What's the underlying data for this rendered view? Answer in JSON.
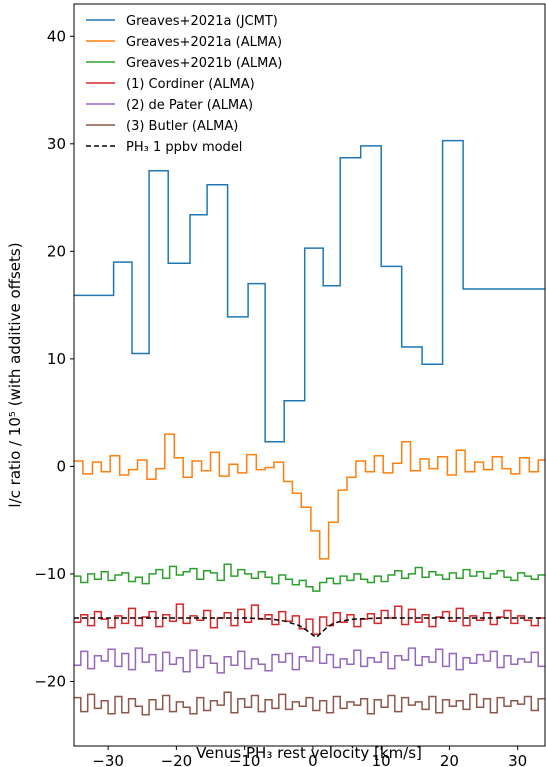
{
  "chart_data": {
    "type": "line",
    "xlabel": "Venus PH₃ rest velocity [km/s]",
    "ylabel": "l/c ratio / 10⁵ (with additive offsets)",
    "xlim": [
      -35,
      34
    ],
    "ylim": [
      -26,
      43
    ],
    "x_ticks": [
      -30,
      -20,
      -10,
      0,
      10,
      20,
      30
    ],
    "x_tick_labels": [
      "−30",
      "−20",
      "−10",
      "0",
      "10",
      "20",
      "30"
    ],
    "y_ticks": [
      -20,
      -10,
      0,
      10,
      20,
      30,
      40
    ],
    "y_tick_labels": [
      "−20",
      "−10",
      "0",
      "10",
      "20",
      "30",
      "40"
    ],
    "grid": false,
    "legend_position": "top-left",
    "series": [
      {
        "name": "Greaves+2021a (JCMT)",
        "color": "#1f77b4",
        "step": true,
        "dash": false,
        "x": [
          -35.5,
          -32.0,
          -29.2,
          -26.5,
          -24.0,
          -21.2,
          -18.0,
          -15.5,
          -12.5,
          -9.5,
          -7.0,
          -4.2,
          -1.2,
          1.5,
          4.0,
          7.0,
          10.0,
          13.0,
          16.0,
          19.0,
          22.0,
          25.0,
          28.0,
          31.0,
          34.0
        ],
        "y": [
          15.9,
          15.9,
          19.0,
          10.5,
          27.5,
          18.9,
          23.4,
          26.2,
          13.9,
          17.0,
          2.3,
          6.1,
          20.3,
          16.8,
          28.7,
          29.8,
          18.6,
          11.1,
          9.5,
          30.3,
          16.5,
          16.5,
          16.5,
          16.5,
          16.5
        ]
      },
      {
        "name": "Greaves+2021a (ALMA)",
        "color": "#ff7f0e",
        "step": true,
        "dash": false,
        "x": [
          -35.0,
          -33.7,
          -32.3,
          -31.0,
          -29.7,
          -28.3,
          -27.0,
          -25.7,
          -24.3,
          -23.0,
          -21.7,
          -20.3,
          -19.0,
          -17.7,
          -16.3,
          -15.0,
          -13.7,
          -12.3,
          -11.0,
          -9.7,
          -8.3,
          -7.0,
          -5.7,
          -4.3,
          -3.0,
          -1.7,
          -0.3,
          1.0,
          2.3,
          3.7,
          5.0,
          6.3,
          7.7,
          9.0,
          10.3,
          11.7,
          13.0,
          14.3,
          15.7,
          17.0,
          18.3,
          19.7,
          21.0,
          22.3,
          23.7,
          25.0,
          26.3,
          27.7,
          29.0,
          30.3,
          31.7,
          33.0,
          34.0
        ],
        "y": [
          0.5,
          -0.7,
          0.4,
          -0.5,
          1.0,
          -0.8,
          -0.3,
          0.6,
          -1.2,
          -0.2,
          3.0,
          0.8,
          -1.0,
          0.5,
          -0.4,
          1.3,
          -0.9,
          0.2,
          -0.6,
          1.1,
          -0.3,
          -0.1,
          0.4,
          -1.4,
          -2.5,
          -3.8,
          -6.0,
          -8.6,
          -5.2,
          -2.2,
          -1.0,
          0.5,
          -0.5,
          1.0,
          -0.6,
          0.3,
          2.3,
          -0.4,
          0.7,
          -0.2,
          0.9,
          -0.8,
          1.5,
          -0.5,
          0.4,
          -0.3,
          0.9,
          -0.2,
          -0.7,
          0.8,
          -0.5,
          0.6,
          0.6
        ]
      },
      {
        "name": "Greaves+2021b (ALMA)",
        "color": "#2ca02c",
        "step": true,
        "dash": false,
        "x": [
          -35.0,
          -34.0,
          -33.0,
          -32.0,
          -31.0,
          -30.0,
          -29.0,
          -28.0,
          -27.0,
          -26.0,
          -25.0,
          -24.0,
          -23.0,
          -22.0,
          -21.0,
          -20.0,
          -19.0,
          -18.0,
          -17.0,
          -16.0,
          -15.0,
          -14.0,
          -13.0,
          -12.0,
          -11.0,
          -10.0,
          -9.0,
          -8.0,
          -7.0,
          -6.0,
          -5.0,
          -4.0,
          -3.0,
          -2.0,
          -1.0,
          0.0,
          1.0,
          2.0,
          3.0,
          4.0,
          5.0,
          6.0,
          7.0,
          8.0,
          9.0,
          10.0,
          11.0,
          12.0,
          13.0,
          14.0,
          15.0,
          16.0,
          17.0,
          18.0,
          19.0,
          20.0,
          21.0,
          22.0,
          23.0,
          24.0,
          25.0,
          26.0,
          27.0,
          28.0,
          29.0,
          30.0,
          31.0,
          32.0,
          33.0,
          34.0
        ],
        "y": [
          -10.2,
          -10.8,
          -10.0,
          -10.5,
          -9.8,
          -10.6,
          -10.1,
          -9.9,
          -10.7,
          -10.3,
          -10.9,
          -10.0,
          -9.6,
          -10.4,
          -9.3,
          -10.1,
          -9.8,
          -9.5,
          -10.5,
          -9.7,
          -9.9,
          -10.6,
          -9.1,
          -10.2,
          -9.6,
          -10.0,
          -10.4,
          -9.8,
          -10.3,
          -10.9,
          -10.1,
          -10.5,
          -11.0,
          -10.6,
          -11.2,
          -11.6,
          -10.8,
          -10.4,
          -10.9,
          -10.2,
          -10.6,
          -10.0,
          -10.5,
          -10.8,
          -10.2,
          -10.7,
          -10.1,
          -9.7,
          -10.4,
          -10.0,
          -9.4,
          -10.3,
          -9.8,
          -10.1,
          -10.5,
          -9.9,
          -10.4,
          -9.6,
          -10.2,
          -9.8,
          -10.4,
          -10.0,
          -9.7,
          -10.3,
          -10.6,
          -9.9,
          -10.2,
          -10.5,
          -10.1,
          -10.1
        ]
      },
      {
        "name": "(1) Cordiner (ALMA)",
        "color": "#d62728",
        "step": true,
        "dash": false,
        "x": [
          -35.0,
          -34.0,
          -33.0,
          -32.0,
          -31.0,
          -30.0,
          -29.0,
          -28.0,
          -27.0,
          -26.0,
          -25.0,
          -24.0,
          -23.0,
          -22.0,
          -21.0,
          -20.0,
          -19.0,
          -18.0,
          -17.0,
          -16.0,
          -15.0,
          -14.0,
          -13.0,
          -12.0,
          -11.0,
          -10.0,
          -9.0,
          -8.0,
          -7.0,
          -6.0,
          -5.0,
          -4.0,
          -3.0,
          -2.0,
          -1.0,
          0.0,
          1.0,
          2.0,
          3.0,
          4.0,
          5.0,
          6.0,
          7.0,
          8.0,
          9.0,
          10.0,
          11.0,
          12.0,
          13.0,
          14.0,
          15.0,
          16.0,
          17.0,
          18.0,
          19.0,
          20.0,
          21.0,
          22.0,
          23.0,
          24.0,
          25.0,
          26.0,
          27.0,
          28.0,
          29.0,
          30.0,
          31.0,
          32.0,
          33.0,
          34.0
        ],
        "y": [
          -14.5,
          -13.8,
          -14.8,
          -13.5,
          -14.2,
          -15.0,
          -13.9,
          -14.6,
          -13.2,
          -14.8,
          -14.0,
          -13.5,
          -14.9,
          -13.8,
          -14.4,
          -12.8,
          -14.6,
          -13.9,
          -14.3,
          -13.4,
          -15.0,
          -14.1,
          -13.6,
          -14.8,
          -13.3,
          -14.5,
          -12.9,
          -14.2,
          -13.8,
          -14.7,
          -13.5,
          -14.4,
          -13.9,
          -15.1,
          -14.2,
          -15.6,
          -14.0,
          -14.8,
          -13.6,
          -14.5,
          -13.8,
          -14.9,
          -14.2,
          -13.7,
          -14.6,
          -13.4,
          -14.1,
          -13.0,
          -14.7,
          -13.3,
          -14.5,
          -13.8,
          -14.9,
          -14.0,
          -13.5,
          -14.4,
          -13.2,
          -14.8,
          -13.9,
          -14.3,
          -13.6,
          -14.7,
          -14.0,
          -13.4,
          -14.6,
          -13.9,
          -14.3,
          -14.8,
          -14.1,
          -14.1
        ]
      },
      {
        "name": "(2) de Pater (ALMA)",
        "color": "#9467bd",
        "step": true,
        "dash": false,
        "x": [
          -35.0,
          -34.0,
          -33.0,
          -32.0,
          -31.0,
          -30.0,
          -29.0,
          -28.0,
          -27.0,
          -26.0,
          -25.0,
          -24.0,
          -23.0,
          -22.0,
          -21.0,
          -20.0,
          -19.0,
          -18.0,
          -17.0,
          -16.0,
          -15.0,
          -14.0,
          -13.0,
          -12.0,
          -11.0,
          -10.0,
          -9.0,
          -8.0,
          -7.0,
          -6.0,
          -5.0,
          -4.0,
          -3.0,
          -2.0,
          -1.0,
          0.0,
          1.0,
          2.0,
          3.0,
          4.0,
          5.0,
          6.0,
          7.0,
          8.0,
          9.0,
          10.0,
          11.0,
          12.0,
          13.0,
          14.0,
          15.0,
          16.0,
          17.0,
          18.0,
          19.0,
          20.0,
          21.0,
          22.0,
          23.0,
          24.0,
          25.0,
          26.0,
          27.0,
          28.0,
          29.0,
          30.0,
          31.0,
          32.0,
          33.0,
          34.0
        ],
        "y": [
          -18.5,
          -17.2,
          -18.8,
          -17.6,
          -18.1,
          -17.0,
          -18.6,
          -17.4,
          -18.9,
          -16.9,
          -18.2,
          -17.5,
          -19.0,
          -17.3,
          -18.4,
          -17.8,
          -19.1,
          -17.1,
          -18.7,
          -17.6,
          -18.3,
          -19.2,
          -17.7,
          -18.5,
          -17.2,
          -18.8,
          -17.9,
          -18.4,
          -19.0,
          -17.5,
          -18.2,
          -17.4,
          -18.9,
          -17.7,
          -18.1,
          -16.8,
          -18.3,
          -17.5,
          -18.7,
          -17.9,
          -18.4,
          -17.1,
          -18.6,
          -17.8,
          -18.2,
          -17.3,
          -18.8,
          -17.6,
          -18.0,
          -16.9,
          -18.5,
          -17.7,
          -18.2,
          -17.0,
          -18.6,
          -17.4,
          -18.9,
          -17.8,
          -18.3,
          -17.5,
          -18.1,
          -17.2,
          -18.7,
          -17.6,
          -18.4,
          -17.9,
          -18.2,
          -17.3,
          -18.6,
          -18.6
        ]
      },
      {
        "name": "(3) Butler (ALMA)",
        "color": "#8c564b",
        "step": true,
        "dash": false,
        "x": [
          -35.0,
          -34.0,
          -33.0,
          -32.0,
          -31.0,
          -30.0,
          -29.0,
          -28.0,
          -27.0,
          -26.0,
          -25.0,
          -24.0,
          -23.0,
          -22.0,
          -21.0,
          -20.0,
          -19.0,
          -18.0,
          -17.0,
          -16.0,
          -15.0,
          -14.0,
          -13.0,
          -12.0,
          -11.0,
          -10.0,
          -9.0,
          -8.0,
          -7.0,
          -6.0,
          -5.0,
          -4.0,
          -3.0,
          -2.0,
          -1.0,
          0.0,
          1.0,
          2.0,
          3.0,
          4.0,
          5.0,
          6.0,
          7.0,
          8.0,
          9.0,
          10.0,
          11.0,
          12.0,
          13.0,
          14.0,
          15.0,
          16.0,
          17.0,
          18.0,
          19.0,
          20.0,
          21.0,
          22.0,
          23.0,
          24.0,
          25.0,
          26.0,
          27.0,
          28.0,
          29.0,
          30.0,
          31.0,
          32.0,
          33.0,
          34.0
        ],
        "y": [
          -21.5,
          -22.8,
          -21.2,
          -22.5,
          -21.8,
          -23.0,
          -21.4,
          -22.9,
          -21.6,
          -22.3,
          -23.1,
          -21.7,
          -22.6,
          -21.3,
          -22.8,
          -21.9,
          -22.4,
          -23.0,
          -21.5,
          -22.7,
          -21.8,
          -22.2,
          -21.0,
          -22.9,
          -21.6,
          -22.4,
          -21.3,
          -22.8,
          -21.7,
          -22.5,
          -21.2,
          -22.6,
          -21.9,
          -22.3,
          -21.5,
          -22.7,
          -21.8,
          -22.9,
          -21.4,
          -22.5,
          -21.9,
          -22.2,
          -21.6,
          -23.0,
          -21.7,
          -22.4,
          -21.3,
          -22.8,
          -21.5,
          -22.2,
          -21.9,
          -22.6,
          -21.4,
          -22.9,
          -21.7,
          -22.3,
          -21.8,
          -22.6,
          -21.2,
          -22.4,
          -21.6,
          -22.9,
          -21.5,
          -22.3,
          -21.8,
          -22.1,
          -21.4,
          -22.7,
          -21.6,
          -21.6
        ]
      },
      {
        "name": "PH₃ 1 ppbv model",
        "color": "#000000",
        "step": false,
        "dash": true,
        "x": [
          -35,
          -10,
          -6,
          -4,
          -2,
          -1,
          0,
          0.5,
          1,
          2,
          3,
          4,
          6,
          10,
          34
        ],
        "y": [
          -14.1,
          -14.1,
          -14.2,
          -14.4,
          -14.8,
          -15.2,
          -15.7,
          -15.9,
          -15.6,
          -15.0,
          -14.6,
          -14.4,
          -14.2,
          -14.1,
          -14.1
        ]
      }
    ]
  }
}
